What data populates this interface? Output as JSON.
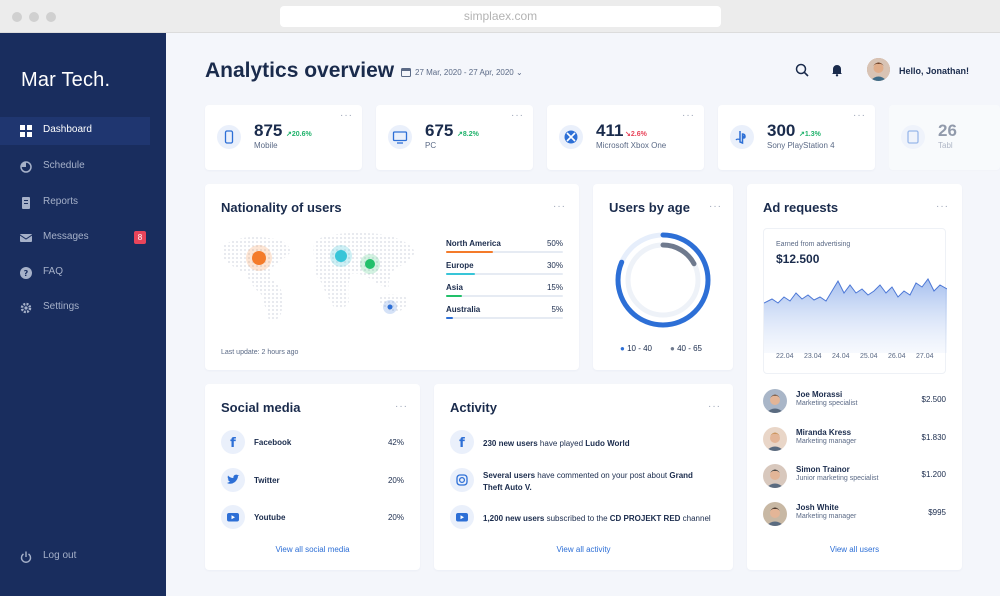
{
  "browser": {
    "url": "simplaex.com"
  },
  "sidebar": {
    "brand": "Mar Tech.",
    "items": [
      {
        "label": "Dashboard",
        "icon": "dashboard-icon",
        "active": true
      },
      {
        "label": "Schedule",
        "icon": "schedule-icon"
      },
      {
        "label": "Reports",
        "icon": "reports-icon"
      },
      {
        "label": "Messages",
        "icon": "messages-icon",
        "badge": "8"
      },
      {
        "label": "FAQ",
        "icon": "faq-icon"
      },
      {
        "label": "Settings",
        "icon": "settings-icon"
      }
    ],
    "logout": "Log out"
  },
  "header": {
    "title": "Analytics overview",
    "date_range": "27 Mar, 2020 - 27 Apr, 2020",
    "greeting": "Hello, Jonathan!"
  },
  "stats": [
    {
      "value": "875",
      "delta": "↗20.6%",
      "label": "Mobile",
      "trend": "up"
    },
    {
      "value": "675",
      "delta": "↗8.2%",
      "label": "PC",
      "trend": "up"
    },
    {
      "value": "411",
      "delta": "↘2.6%",
      "label": "Microsoft Xbox One",
      "trend": "down"
    },
    {
      "value": "300",
      "delta": "↗1.3%",
      "label": "Sony PlayStation 4",
      "trend": "up"
    },
    {
      "value": "26",
      "label": "Tabl"
    }
  ],
  "nationality": {
    "title": "Nationality of users",
    "last_update": "Last update: 2 hours ago",
    "rows": [
      {
        "name": "North America",
        "pct": "50%",
        "share": 50,
        "color": "#f47b2a"
      },
      {
        "name": "Europe",
        "pct": "30%",
        "share": 30,
        "color": "#38c5d8"
      },
      {
        "name": "Asia",
        "pct": "15%",
        "share": 15,
        "color": "#22c06a"
      },
      {
        "name": "Australia",
        "pct": "5%",
        "share": 5,
        "color": "#2d6fd6"
      }
    ]
  },
  "users_by_age": {
    "title": "Users by age",
    "legend": [
      "10 - 40",
      "40 - 65"
    ]
  },
  "ad_requests": {
    "title": "Ad requests",
    "subtitle": "Earned from advertising",
    "amount": "$12.500",
    "x_labels": [
      "22.04",
      "23.04",
      "24.04",
      "25.04",
      "26.04",
      "27.04"
    ],
    "people": [
      {
        "name": "Joe Morassi",
        "role": "Marketing specialist",
        "amount": "$2.500"
      },
      {
        "name": "Miranda Kress",
        "role": "Marketing manager",
        "amount": "$1.830"
      },
      {
        "name": "Simon Trainor",
        "role": "Junior marketing specialist",
        "amount": "$1.200"
      },
      {
        "name": "Josh White",
        "role": "Marketing manager",
        "amount": "$995"
      }
    ],
    "link": "View all users"
  },
  "social": {
    "title": "Social media",
    "rows": [
      {
        "name": "Facebook",
        "pct": "42%",
        "icon": "facebook-icon"
      },
      {
        "name": "Twitter",
        "pct": "20%",
        "icon": "twitter-icon"
      },
      {
        "name": "Youtube",
        "pct": "20%",
        "icon": "youtube-icon"
      }
    ],
    "link": "View all social media"
  },
  "activity": {
    "title": "Activity",
    "items": [
      {
        "bold": "230 new users",
        "text": " have played ",
        "bold2": "Ludo World",
        "text2": "",
        "icon": "facebook-icon"
      },
      {
        "bold": "Several users",
        "text": " have commented on your post about ",
        "bold2": "Grand Theft Auto V.",
        "text2": "",
        "icon": "instagram-icon"
      },
      {
        "bold": "1,200 new users",
        "text": " subscribed to the ",
        "bold2": "CD PROJEKT RED",
        "text2": " channel",
        "icon": "youtube-icon"
      }
    ],
    "link": "View all activity"
  },
  "colors": {
    "sidebar": "#192d5e",
    "accent": "#2d6fd6",
    "up": "#20b26b",
    "down": "#e8445a"
  }
}
